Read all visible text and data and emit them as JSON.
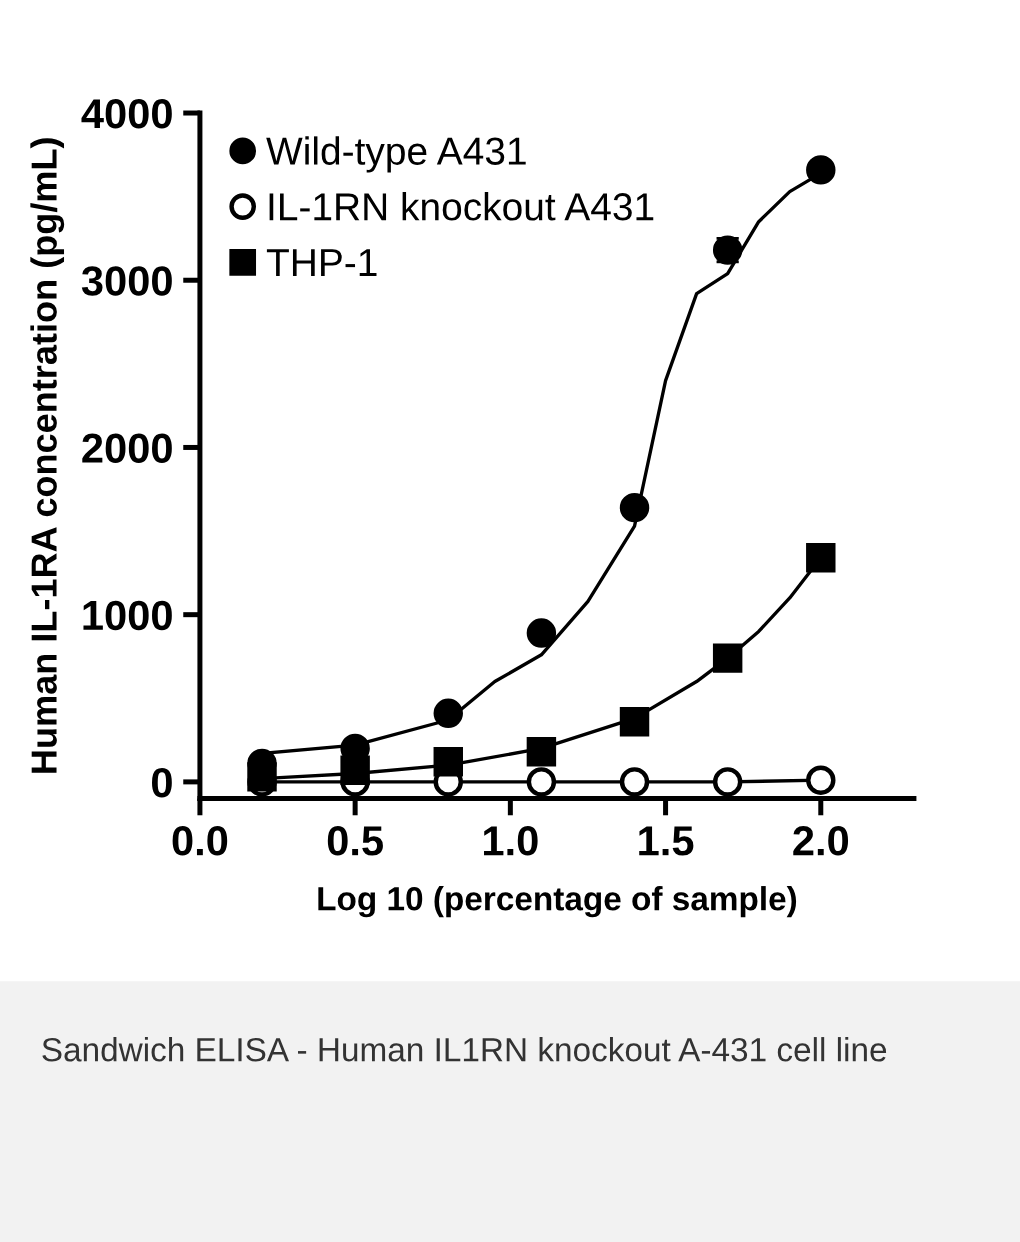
{
  "chart_data": {
    "type": "scatter",
    "ylabel": "Human IL-1RA concentration (pg/mL)",
    "xlabel": "Log 10 (percentage of sample)",
    "x": [
      0.2,
      0.5,
      0.8,
      1.1,
      1.4,
      1.7,
      2.0
    ],
    "series": [
      {
        "name": "Wild-type A431",
        "color": "#000000",
        "marker": "circle",
        "values": [
          110,
          200,
          410,
          890,
          1640,
          3180,
          3660
        ],
        "errors": [
          null,
          null,
          null,
          null,
          null,
          70,
          null
        ]
      },
      {
        "type": "line",
        "color": "#000000",
        "marker": "none",
        "values": [
          0,
          0,
          0,
          0,
          0,
          0,
          10
        ]
      },
      {
        "name": "IL-1RN knockout A431",
        "color": "#ffffff",
        "marker": "circle",
        "values": [
          0,
          0,
          0,
          0,
          0,
          0,
          10
        ]
      },
      {
        "name": "THP-1",
        "color": "#000000",
        "marker": "square",
        "values": [
          30,
          70,
          120,
          180,
          360,
          740,
          1340
        ]
      },
      {
        "type": "line",
        "color": "#000000",
        "marker": "none",
        "x": [
          0.2,
          0.5,
          0.8,
          0.95,
          1.1,
          1.25,
          1.4,
          1.5,
          1.6,
          1.7,
          1.8,
          1.9,
          2.0
        ],
        "values": [
          170,
          220,
          370,
          600,
          760,
          1080,
          1530,
          2400,
          2920,
          3040,
          3350,
          3530,
          3640
        ]
      },
      {
        "type": "line",
        "color": "#000000",
        "marker": "none",
        "x": [
          0.2,
          0.5,
          0.8,
          1.1,
          1.4,
          1.6,
          1.7,
          1.8,
          1.9,
          2.0
        ],
        "values": [
          20,
          50,
          100,
          200,
          380,
          600,
          740,
          900,
          1100,
          1340
        ]
      }
    ],
    "xlim": [
      0,
      2.3
    ],
    "ylim": [
      -100,
      4000
    ],
    "xticks": [
      {
        "value": 0,
        "label": "0.0"
      },
      {
        "value": 0.5,
        "label": "0.5"
      },
      {
        "value": 1,
        "label": "1.0"
      },
      {
        "value": 1.5,
        "label": "1.5"
      },
      {
        "value": 2,
        "label": "2.0"
      }
    ],
    "yticks": [
      0,
      1000,
      2000,
      3000,
      4000
    ],
    "grid": false,
    "legend": "top left",
    "annotations": [
      "Sandwich ELISA - Human IL1RN knockout A-431 cell line"
    ]
  }
}
